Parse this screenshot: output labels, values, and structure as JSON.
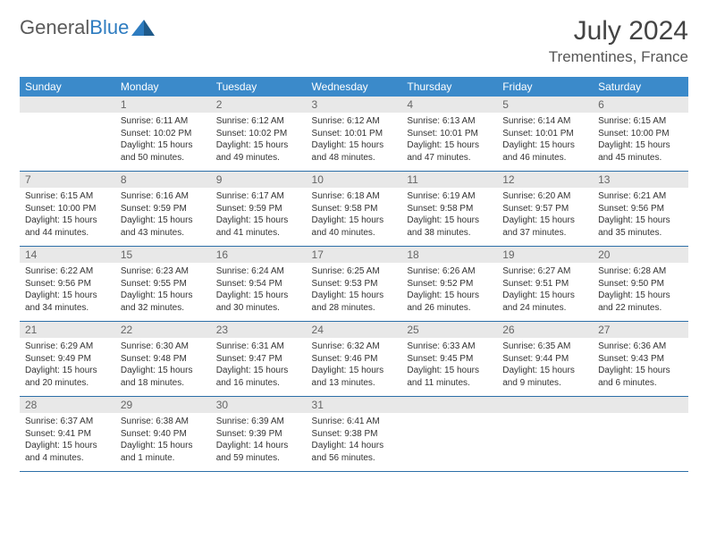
{
  "logo": {
    "text_gray": "General",
    "text_blue": "Blue"
  },
  "title": "July 2024",
  "location": "Trementines, France",
  "colors": {
    "header_bg": "#3b8aca",
    "header_text": "#ffffff",
    "daynum_bg": "#e8e8e8",
    "daynum_text": "#666666",
    "row_border": "#2d6fa8",
    "body_text": "#333333",
    "page_bg": "#ffffff"
  },
  "day_headers": [
    "Sunday",
    "Monday",
    "Tuesday",
    "Wednesday",
    "Thursday",
    "Friday",
    "Saturday"
  ],
  "weeks": [
    [
      {
        "num": "",
        "sunrise": "",
        "sunset": "",
        "daylight": ""
      },
      {
        "num": "1",
        "sunrise": "Sunrise: 6:11 AM",
        "sunset": "Sunset: 10:02 PM",
        "daylight": "Daylight: 15 hours and 50 minutes."
      },
      {
        "num": "2",
        "sunrise": "Sunrise: 6:12 AM",
        "sunset": "Sunset: 10:02 PM",
        "daylight": "Daylight: 15 hours and 49 minutes."
      },
      {
        "num": "3",
        "sunrise": "Sunrise: 6:12 AM",
        "sunset": "Sunset: 10:01 PM",
        "daylight": "Daylight: 15 hours and 48 minutes."
      },
      {
        "num": "4",
        "sunrise": "Sunrise: 6:13 AM",
        "sunset": "Sunset: 10:01 PM",
        "daylight": "Daylight: 15 hours and 47 minutes."
      },
      {
        "num": "5",
        "sunrise": "Sunrise: 6:14 AM",
        "sunset": "Sunset: 10:01 PM",
        "daylight": "Daylight: 15 hours and 46 minutes."
      },
      {
        "num": "6",
        "sunrise": "Sunrise: 6:15 AM",
        "sunset": "Sunset: 10:00 PM",
        "daylight": "Daylight: 15 hours and 45 minutes."
      }
    ],
    [
      {
        "num": "7",
        "sunrise": "Sunrise: 6:15 AM",
        "sunset": "Sunset: 10:00 PM",
        "daylight": "Daylight: 15 hours and 44 minutes."
      },
      {
        "num": "8",
        "sunrise": "Sunrise: 6:16 AM",
        "sunset": "Sunset: 9:59 PM",
        "daylight": "Daylight: 15 hours and 43 minutes."
      },
      {
        "num": "9",
        "sunrise": "Sunrise: 6:17 AM",
        "sunset": "Sunset: 9:59 PM",
        "daylight": "Daylight: 15 hours and 41 minutes."
      },
      {
        "num": "10",
        "sunrise": "Sunrise: 6:18 AM",
        "sunset": "Sunset: 9:58 PM",
        "daylight": "Daylight: 15 hours and 40 minutes."
      },
      {
        "num": "11",
        "sunrise": "Sunrise: 6:19 AM",
        "sunset": "Sunset: 9:58 PM",
        "daylight": "Daylight: 15 hours and 38 minutes."
      },
      {
        "num": "12",
        "sunrise": "Sunrise: 6:20 AM",
        "sunset": "Sunset: 9:57 PM",
        "daylight": "Daylight: 15 hours and 37 minutes."
      },
      {
        "num": "13",
        "sunrise": "Sunrise: 6:21 AM",
        "sunset": "Sunset: 9:56 PM",
        "daylight": "Daylight: 15 hours and 35 minutes."
      }
    ],
    [
      {
        "num": "14",
        "sunrise": "Sunrise: 6:22 AM",
        "sunset": "Sunset: 9:56 PM",
        "daylight": "Daylight: 15 hours and 34 minutes."
      },
      {
        "num": "15",
        "sunrise": "Sunrise: 6:23 AM",
        "sunset": "Sunset: 9:55 PM",
        "daylight": "Daylight: 15 hours and 32 minutes."
      },
      {
        "num": "16",
        "sunrise": "Sunrise: 6:24 AM",
        "sunset": "Sunset: 9:54 PM",
        "daylight": "Daylight: 15 hours and 30 minutes."
      },
      {
        "num": "17",
        "sunrise": "Sunrise: 6:25 AM",
        "sunset": "Sunset: 9:53 PM",
        "daylight": "Daylight: 15 hours and 28 minutes."
      },
      {
        "num": "18",
        "sunrise": "Sunrise: 6:26 AM",
        "sunset": "Sunset: 9:52 PM",
        "daylight": "Daylight: 15 hours and 26 minutes."
      },
      {
        "num": "19",
        "sunrise": "Sunrise: 6:27 AM",
        "sunset": "Sunset: 9:51 PM",
        "daylight": "Daylight: 15 hours and 24 minutes."
      },
      {
        "num": "20",
        "sunrise": "Sunrise: 6:28 AM",
        "sunset": "Sunset: 9:50 PM",
        "daylight": "Daylight: 15 hours and 22 minutes."
      }
    ],
    [
      {
        "num": "21",
        "sunrise": "Sunrise: 6:29 AM",
        "sunset": "Sunset: 9:49 PM",
        "daylight": "Daylight: 15 hours and 20 minutes."
      },
      {
        "num": "22",
        "sunrise": "Sunrise: 6:30 AM",
        "sunset": "Sunset: 9:48 PM",
        "daylight": "Daylight: 15 hours and 18 minutes."
      },
      {
        "num": "23",
        "sunrise": "Sunrise: 6:31 AM",
        "sunset": "Sunset: 9:47 PM",
        "daylight": "Daylight: 15 hours and 16 minutes."
      },
      {
        "num": "24",
        "sunrise": "Sunrise: 6:32 AM",
        "sunset": "Sunset: 9:46 PM",
        "daylight": "Daylight: 15 hours and 13 minutes."
      },
      {
        "num": "25",
        "sunrise": "Sunrise: 6:33 AM",
        "sunset": "Sunset: 9:45 PM",
        "daylight": "Daylight: 15 hours and 11 minutes."
      },
      {
        "num": "26",
        "sunrise": "Sunrise: 6:35 AM",
        "sunset": "Sunset: 9:44 PM",
        "daylight": "Daylight: 15 hours and 9 minutes."
      },
      {
        "num": "27",
        "sunrise": "Sunrise: 6:36 AM",
        "sunset": "Sunset: 9:43 PM",
        "daylight": "Daylight: 15 hours and 6 minutes."
      }
    ],
    [
      {
        "num": "28",
        "sunrise": "Sunrise: 6:37 AM",
        "sunset": "Sunset: 9:41 PM",
        "daylight": "Daylight: 15 hours and 4 minutes."
      },
      {
        "num": "29",
        "sunrise": "Sunrise: 6:38 AM",
        "sunset": "Sunset: 9:40 PM",
        "daylight": "Daylight: 15 hours and 1 minute."
      },
      {
        "num": "30",
        "sunrise": "Sunrise: 6:39 AM",
        "sunset": "Sunset: 9:39 PM",
        "daylight": "Daylight: 14 hours and 59 minutes."
      },
      {
        "num": "31",
        "sunrise": "Sunrise: 6:41 AM",
        "sunset": "Sunset: 9:38 PM",
        "daylight": "Daylight: 14 hours and 56 minutes."
      },
      {
        "num": "",
        "sunrise": "",
        "sunset": "",
        "daylight": ""
      },
      {
        "num": "",
        "sunrise": "",
        "sunset": "",
        "daylight": ""
      },
      {
        "num": "",
        "sunrise": "",
        "sunset": "",
        "daylight": ""
      }
    ]
  ]
}
